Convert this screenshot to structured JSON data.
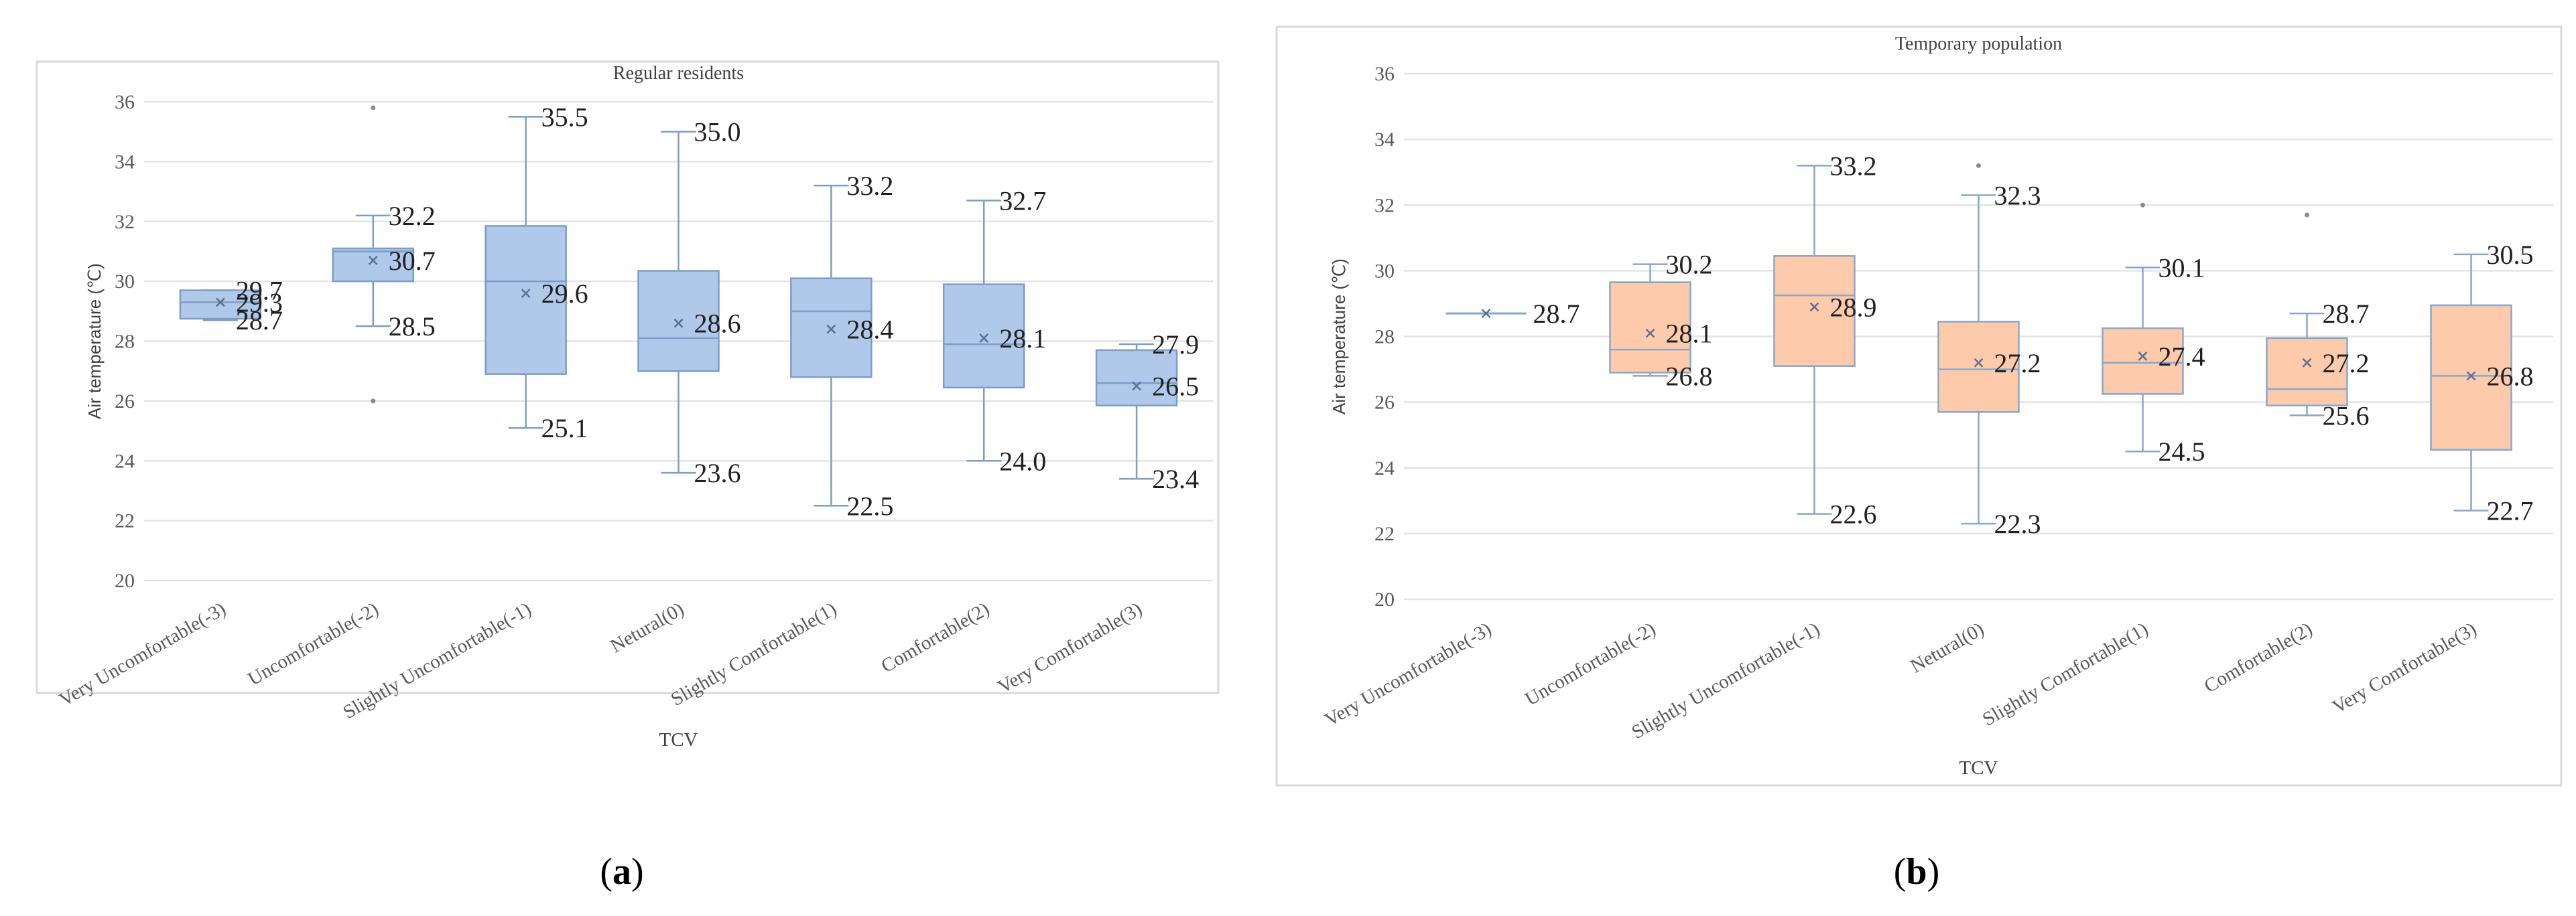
{
  "chart_data": [
    {
      "type": "box",
      "panel_label": "(a)",
      "panel_label_bold": "a",
      "title": "Regular residents",
      "xlabel": "TCV",
      "ylabel": "Air temperature (℃)",
      "ylim": [
        20,
        36
      ],
      "yticks": [
        "20",
        "22",
        "24",
        "26",
        "28",
        "30",
        "32",
        "34",
        "36"
      ],
      "grid": true,
      "box_color": "#b0c8ea",
      "edge_color": "#7d9dc8",
      "categories": [
        "Very  Uncomfortable(-3)",
        "Uncomfortable(-2)",
        "Slightly Uncomfortable(-1)",
        "Netural(0)",
        "Slightly Comfortable(1)",
        "Comfortable(2)",
        "Very Comfortable(3)"
      ],
      "boxes": [
        {
          "min": 28.7,
          "q1": 28.75,
          "median": 29.3,
          "q3": 29.7,
          "max": 29.7,
          "mean": 29.3,
          "outliers": [],
          "labels": [
            {
              "value": 29.7,
              "text": "29.7"
            },
            {
              "value": 29.3,
              "text": "29.3"
            },
            {
              "value": 28.7,
              "text": "28.7"
            }
          ]
        },
        {
          "min": 28.5,
          "q1": 30.0,
          "median": 31.0,
          "q3": 31.1,
          "max": 32.2,
          "mean": 30.7,
          "outliers": [
            35.8,
            26.0
          ],
          "labels": [
            {
              "value": 32.2,
              "text": "32.2"
            },
            {
              "value": 30.7,
              "text": "30.7"
            },
            {
              "value": 28.5,
              "text": "28.5"
            }
          ]
        },
        {
          "min": 25.1,
          "q1": 26.9,
          "median": 30.0,
          "q3": 31.85,
          "max": 35.5,
          "mean": 29.6,
          "outliers": [],
          "labels": [
            {
              "value": 35.5,
              "text": "35.5"
            },
            {
              "value": 29.6,
              "text": "29.6"
            },
            {
              "value": 25.1,
              "text": "25.1"
            }
          ]
        },
        {
          "min": 23.6,
          "q1": 27.0,
          "median": 28.1,
          "q3": 30.35,
          "max": 35.0,
          "mean": 28.6,
          "outliers": [],
          "labels": [
            {
              "value": 35.0,
              "text": "35.0"
            },
            {
              "value": 28.6,
              "text": "28.6"
            },
            {
              "value": 23.6,
              "text": "23.6"
            }
          ]
        },
        {
          "min": 22.5,
          "q1": 26.8,
          "median": 29.0,
          "q3": 30.1,
          "max": 33.2,
          "mean": 28.4,
          "outliers": [],
          "labels": [
            {
              "value": 33.2,
              "text": "33.2"
            },
            {
              "value": 28.4,
              "text": "28.4"
            },
            {
              "value": 22.5,
              "text": "22.5"
            }
          ]
        },
        {
          "min": 24.0,
          "q1": 26.45,
          "median": 27.9,
          "q3": 29.9,
          "max": 32.7,
          "mean": 28.1,
          "outliers": [],
          "labels": [
            {
              "value": 32.7,
              "text": "32.7"
            },
            {
              "value": 28.1,
              "text": "28.1"
            },
            {
              "value": 24.0,
              "text": "24.0"
            }
          ]
        },
        {
          "min": 23.4,
          "q1": 25.85,
          "median": 26.6,
          "q3": 27.7,
          "max": 27.9,
          "mean": 26.5,
          "outliers": [],
          "labels": [
            {
              "value": 27.9,
              "text": "27.9"
            },
            {
              "value": 26.5,
              "text": "26.5"
            },
            {
              "value": 23.4,
              "text": "23.4"
            }
          ]
        }
      ]
    },
    {
      "type": "box",
      "panel_label": "(b)",
      "panel_label_bold": "b",
      "title": "Temporary population",
      "xlabel": "TCV",
      "ylabel": "Air temperature  (℃)",
      "ylim": [
        20,
        36
      ],
      "yticks": [
        "20",
        "22",
        "24",
        "26",
        "28",
        "30",
        "32",
        "34",
        "36"
      ],
      "grid": true,
      "box_color": "#fdcbab",
      "edge_color": "#8aa6cc",
      "categories": [
        "Very Uncomfortable(-3)",
        "Uncomfortable(-2)",
        "Slightly Uncomfortable(-1)",
        "Netural(0)",
        "Slightly Comfortable(1)",
        "Comfortable(2)",
        "Very Comfortable(3)"
      ],
      "boxes": [
        {
          "min": 28.7,
          "q1": 28.7,
          "median": 28.7,
          "q3": 28.7,
          "max": 28.7,
          "mean": 28.7,
          "outliers": [],
          "labels": [
            {
              "value": 28.7,
              "text": "28.7"
            }
          ]
        },
        {
          "min": 26.8,
          "q1": 26.9,
          "median": 27.6,
          "q3": 29.65,
          "max": 30.2,
          "mean": 28.1,
          "outliers": [],
          "labels": [
            {
              "value": 30.2,
              "text": "30.2"
            },
            {
              "value": 28.1,
              "text": "28.1"
            },
            {
              "value": 26.8,
              "text": "26.8"
            }
          ]
        },
        {
          "min": 22.6,
          "q1": 27.1,
          "median": 29.25,
          "q3": 30.45,
          "max": 33.2,
          "mean": 28.9,
          "outliers": [],
          "labels": [
            {
              "value": 33.2,
              "text": "33.2"
            },
            {
              "value": 28.9,
              "text": "28.9"
            },
            {
              "value": 22.6,
              "text": "22.6"
            }
          ]
        },
        {
          "min": 22.3,
          "q1": 25.7,
          "median": 27.0,
          "q3": 28.45,
          "max": 32.3,
          "mean": 27.2,
          "outliers": [
            33.2
          ],
          "labels": [
            {
              "value": 32.3,
              "text": "32.3"
            },
            {
              "value": 27.2,
              "text": "27.2"
            },
            {
              "value": 22.3,
              "text": "22.3"
            }
          ]
        },
        {
          "min": 24.5,
          "q1": 26.25,
          "median": 27.2,
          "q3": 28.25,
          "max": 30.1,
          "mean": 27.4,
          "outliers": [
            32.0
          ],
          "labels": [
            {
              "value": 30.1,
              "text": "30.1"
            },
            {
              "value": 27.4,
              "text": "27.4"
            },
            {
              "value": 24.5,
              "text": "24.5"
            }
          ]
        },
        {
          "min": 25.6,
          "q1": 25.9,
          "median": 26.4,
          "q3": 27.95,
          "max": 28.7,
          "mean": 27.2,
          "outliers": [
            31.7
          ],
          "labels": [
            {
              "value": 28.7,
              "text": "28.7"
            },
            {
              "value": 27.2,
              "text": "27.2"
            },
            {
              "value": 25.6,
              "text": "25.6"
            }
          ]
        },
        {
          "min": 22.7,
          "q1": 24.55,
          "median": 26.8,
          "q3": 28.95,
          "max": 30.5,
          "mean": 26.8,
          "outliers": [],
          "labels": [
            {
              "value": 30.5,
              "text": "30.5"
            },
            {
              "value": 26.8,
              "text": "26.8"
            },
            {
              "value": 22.7,
              "text": "22.7"
            }
          ]
        }
      ]
    }
  ]
}
